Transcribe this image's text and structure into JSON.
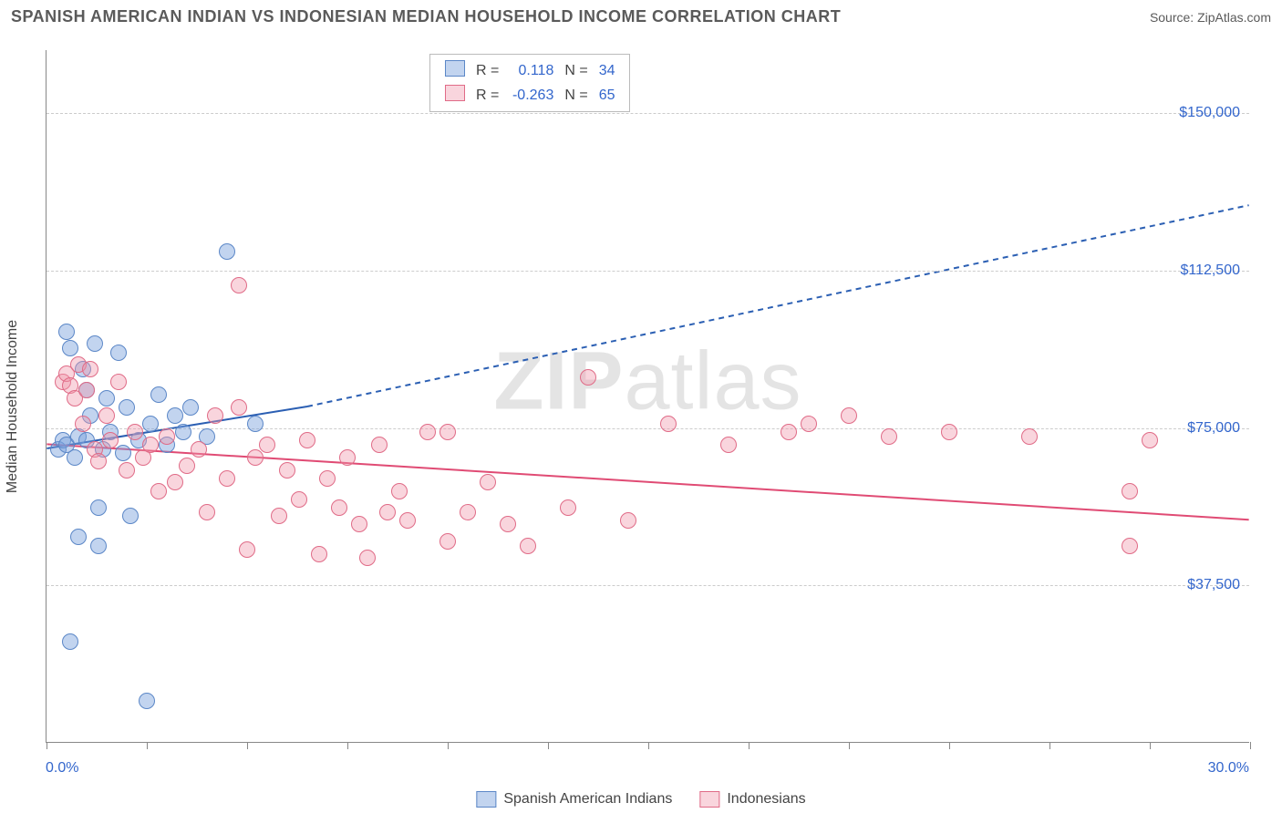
{
  "header": {
    "title": "SPANISH AMERICAN INDIAN VS INDONESIAN MEDIAN HOUSEHOLD INCOME CORRELATION CHART",
    "source": "Source: ZipAtlas.com"
  },
  "watermark": {
    "zip": "ZIP",
    "atlas": "atlas"
  },
  "chart": {
    "type": "scatter",
    "y_axis_title": "Median Household Income",
    "xlim": [
      0,
      30
    ],
    "ylim": [
      0,
      165000
    ],
    "x_min_label": "0.0%",
    "x_max_label": "30.0%",
    "x_ticks": [
      0,
      2.5,
      5,
      7.5,
      10,
      12.5,
      15,
      17.5,
      20,
      22.5,
      25,
      27.5,
      30
    ],
    "y_gridlines": [
      37500,
      75000,
      112500,
      150000
    ],
    "y_tick_labels": [
      "$37,500",
      "$75,000",
      "$112,500",
      "$150,000"
    ],
    "colors": {
      "axis": "#888888",
      "grid": "#cccccc",
      "text_accent": "#3366cc",
      "text_body": "#444444",
      "background": "#ffffff"
    },
    "marker_radius": 9,
    "marker_stroke_width": 1.5,
    "series": [
      {
        "id": "spanish_american_indians",
        "label": "Spanish American Indians",
        "fill": "rgba(120,160,220,0.45)",
        "stroke": "#5b87c7",
        "r_value": "0.118",
        "n_value": "34",
        "trend": {
          "start": [
            0,
            70000
          ],
          "solid_end": [
            6.5,
            80000
          ],
          "dash_end": [
            30,
            128000
          ],
          "stroke": "#2b5fb3",
          "width": 2
        },
        "points": [
          [
            0.3,
            70000
          ],
          [
            0.4,
            72000
          ],
          [
            0.5,
            98000
          ],
          [
            0.5,
            71000
          ],
          [
            0.6,
            94000
          ],
          [
            0.7,
            68000
          ],
          [
            0.8,
            49000
          ],
          [
            0.8,
            73000
          ],
          [
            0.9,
            89000
          ],
          [
            1.0,
            72000
          ],
          [
            1.0,
            84000
          ],
          [
            1.1,
            78000
          ],
          [
            1.2,
            95000
          ],
          [
            1.3,
            56000
          ],
          [
            1.4,
            70000
          ],
          [
            1.5,
            82000
          ],
          [
            1.6,
            74000
          ],
          [
            1.8,
            93000
          ],
          [
            1.9,
            69000
          ],
          [
            2.0,
            80000
          ],
          [
            2.1,
            54000
          ],
          [
            2.3,
            72000
          ],
          [
            2.5,
            10000
          ],
          [
            2.6,
            76000
          ],
          [
            2.8,
            83000
          ],
          [
            3.0,
            71000
          ],
          [
            3.2,
            78000
          ],
          [
            3.4,
            74000
          ],
          [
            3.6,
            80000
          ],
          [
            4.0,
            73000
          ],
          [
            4.5,
            117000
          ],
          [
            0.6,
            24000
          ],
          [
            1.3,
            47000
          ],
          [
            5.2,
            76000
          ]
        ]
      },
      {
        "id": "indonesians",
        "label": "Indonesians",
        "fill": "rgba(240,150,170,0.40)",
        "stroke": "#e06b87",
        "r_value": "-0.263",
        "n_value": "65",
        "trend": {
          "start": [
            0,
            71000
          ],
          "solid_end": [
            30,
            53000
          ],
          "stroke": "#e04b74",
          "width": 2
        },
        "points": [
          [
            0.4,
            86000
          ],
          [
            0.5,
            88000
          ],
          [
            0.6,
            85000
          ],
          [
            0.7,
            82000
          ],
          [
            0.8,
            90000
          ],
          [
            0.9,
            76000
          ],
          [
            1.0,
            84000
          ],
          [
            1.1,
            89000
          ],
          [
            1.2,
            70000
          ],
          [
            1.3,
            67000
          ],
          [
            1.5,
            78000
          ],
          [
            1.6,
            72000
          ],
          [
            1.8,
            86000
          ],
          [
            2.0,
            65000
          ],
          [
            2.2,
            74000
          ],
          [
            2.4,
            68000
          ],
          [
            2.6,
            71000
          ],
          [
            2.8,
            60000
          ],
          [
            3.0,
            73000
          ],
          [
            3.2,
            62000
          ],
          [
            3.5,
            66000
          ],
          [
            3.8,
            70000
          ],
          [
            4.0,
            55000
          ],
          [
            4.2,
            78000
          ],
          [
            4.5,
            63000
          ],
          [
            4.8,
            109000
          ],
          [
            5.0,
            46000
          ],
          [
            5.2,
            68000
          ],
          [
            5.5,
            71000
          ],
          [
            5.8,
            54000
          ],
          [
            6.0,
            65000
          ],
          [
            6.3,
            58000
          ],
          [
            6.5,
            72000
          ],
          [
            6.8,
            45000
          ],
          [
            7.0,
            63000
          ],
          [
            7.3,
            56000
          ],
          [
            7.5,
            68000
          ],
          [
            7.8,
            52000
          ],
          [
            8.0,
            44000
          ],
          [
            8.3,
            71000
          ],
          [
            8.5,
            55000
          ],
          [
            8.8,
            60000
          ],
          [
            9.0,
            53000
          ],
          [
            9.5,
            74000
          ],
          [
            10.0,
            48000
          ],
          [
            10.5,
            55000
          ],
          [
            11.0,
            62000
          ],
          [
            11.5,
            52000
          ],
          [
            12.0,
            47000
          ],
          [
            13.0,
            56000
          ],
          [
            13.5,
            87000
          ],
          [
            14.5,
            53000
          ],
          [
            15.5,
            76000
          ],
          [
            17.0,
            71000
          ],
          [
            18.5,
            74000
          ],
          [
            19.0,
            76000
          ],
          [
            20.0,
            78000
          ],
          [
            21.0,
            73000
          ],
          [
            22.5,
            74000
          ],
          [
            24.5,
            73000
          ],
          [
            27.0,
            60000
          ],
          [
            27.0,
            47000
          ],
          [
            27.5,
            72000
          ],
          [
            10.0,
            74000
          ],
          [
            4.8,
            80000
          ]
        ]
      }
    ],
    "legend_top": {
      "r_label": "R =",
      "n_label": "N ="
    },
    "bottom_legend": {
      "items": [
        "Spanish American Indians",
        "Indonesians"
      ]
    }
  }
}
